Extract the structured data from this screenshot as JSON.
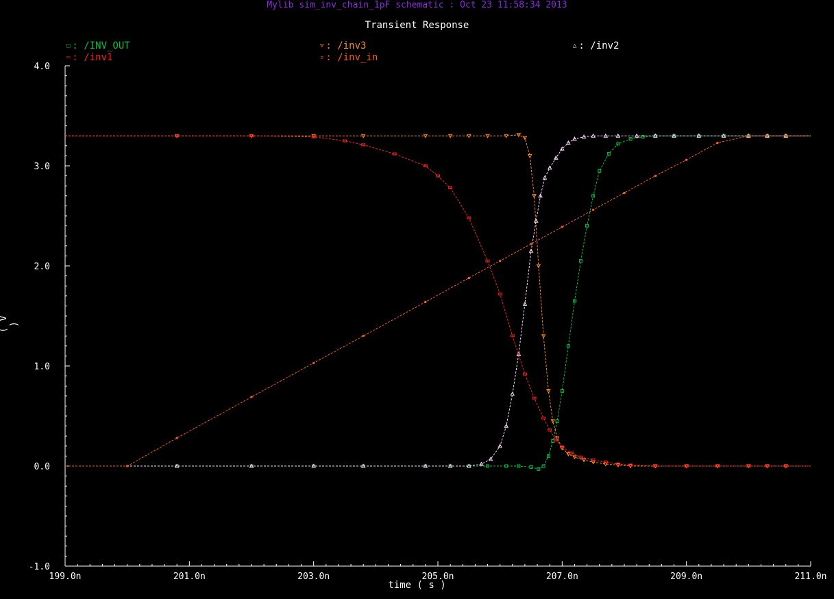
{
  "header": {
    "window_title": "Mylib sim_inv_chain_1pF schematic : Oct 23 11:58:34 2013"
  },
  "chart_data": {
    "type": "line",
    "title": "Transient Response",
    "xlabel": "time ( s )",
    "ylabel": "( V )",
    "xlim": [
      199.0,
      211.0
    ],
    "ylim": [
      -1.0,
      4.0
    ],
    "x_ticks": [
      "199.0n",
      "201.0n",
      "203.0n",
      "205.0n",
      "207.0n",
      "209.0n",
      "211.0n"
    ],
    "y_ticks": [
      "4.0",
      "3.0",
      "2.0",
      "1.0",
      "0.0",
      "-1.0"
    ],
    "colors": {
      "background": "#000000",
      "axis": "#ffffff",
      "header": "#8a2be2",
      "INV_OUT": "#00c040",
      "inv3": "#ff8c1a",
      "inv2": "#ffd6ff",
      "inv1": "#ff2020",
      "inv_in": "#ff5a1a"
    },
    "legend": [
      {
        "marker": "□",
        "label": ": /INV_OUT",
        "key": "INV_OUT",
        "pos": "top-left"
      },
      {
        "marker": "▽",
        "label": ": /inv3",
        "key": "inv3",
        "pos": "top-center"
      },
      {
        "marker": "△",
        "label": ": /inv2",
        "key": "inv2",
        "pos": "top-right"
      },
      {
        "marker": "▭",
        "label": ": /inv1",
        "key": "inv1",
        "pos": "second-left"
      },
      {
        "marker": "▫",
        "label": ": /inv_in",
        "key": "inv_in",
        "pos": "second-center"
      }
    ],
    "series": [
      {
        "name": "/INV_OUT",
        "key": "INV_OUT",
        "marker": "square",
        "x": [
          199.0,
          200.8,
          202.0,
          203.0,
          203.8,
          204.8,
          205.2,
          205.5,
          205.8,
          206.1,
          206.3,
          206.5,
          206.62,
          206.7,
          206.78,
          206.85,
          206.92,
          207.0,
          207.1,
          207.2,
          207.3,
          207.4,
          207.5,
          207.6,
          207.75,
          207.9,
          208.1,
          208.3,
          208.5,
          208.8,
          209.2,
          209.6,
          210.0,
          210.3,
          210.6,
          211.0
        ],
        "y": [
          0.0,
          0.0,
          0.0,
          0.0,
          0.0,
          0.0,
          0.0,
          0.0,
          0.0,
          0.0,
          0.0,
          -0.01,
          -0.03,
          0.0,
          0.1,
          0.25,
          0.45,
          0.75,
          1.2,
          1.65,
          2.05,
          2.4,
          2.7,
          2.95,
          3.12,
          3.22,
          3.27,
          3.29,
          3.3,
          3.3,
          3.3,
          3.3,
          3.3,
          3.3,
          3.3,
          3.3
        ]
      },
      {
        "name": "/inv3",
        "key": "inv3",
        "marker": "triangle-down",
        "x": [
          199.0,
          200.8,
          202.0,
          203.0,
          203.8,
          204.8,
          205.2,
          205.5,
          205.8,
          206.1,
          206.3,
          206.4,
          206.48,
          206.55,
          206.62,
          206.7,
          206.78,
          206.85,
          206.92,
          207.0,
          207.1,
          207.2,
          207.35,
          207.5,
          207.7,
          207.9,
          208.1,
          208.5,
          209.0,
          209.5,
          210.0,
          210.3,
          210.6,
          211.0
        ],
        "y": [
          3.3,
          3.3,
          3.3,
          3.3,
          3.3,
          3.3,
          3.3,
          3.3,
          3.3,
          3.3,
          3.31,
          3.28,
          3.1,
          2.7,
          2.0,
          1.3,
          0.75,
          0.45,
          0.28,
          0.18,
          0.12,
          0.09,
          0.06,
          0.04,
          0.02,
          0.01,
          0.0,
          0.0,
          0.0,
          0.0,
          0.0,
          0.0,
          0.0,
          0.0
        ]
      },
      {
        "name": "/inv2",
        "key": "inv2",
        "marker": "triangle-up",
        "x": [
          199.0,
          200.8,
          202.0,
          203.0,
          203.8,
          204.8,
          205.2,
          205.5,
          205.7,
          205.85,
          206.0,
          206.1,
          206.2,
          206.3,
          206.4,
          206.5,
          206.58,
          206.65,
          206.72,
          206.8,
          206.9,
          207.0,
          207.1,
          207.2,
          207.35,
          207.5,
          207.7,
          207.9,
          208.2,
          208.5,
          208.8,
          209.2,
          209.6,
          210.0,
          210.3,
          210.6,
          211.0
        ],
        "y": [
          0.0,
          0.0,
          0.0,
          0.0,
          0.0,
          0.0,
          0.0,
          0.0,
          0.02,
          0.07,
          0.2,
          0.4,
          0.72,
          1.12,
          1.62,
          2.15,
          2.45,
          2.7,
          2.88,
          2.98,
          3.08,
          3.17,
          3.23,
          3.27,
          3.29,
          3.3,
          3.3,
          3.3,
          3.3,
          3.3,
          3.3,
          3.3,
          3.3,
          3.3,
          3.3,
          3.3,
          3.3
        ]
      },
      {
        "name": "/inv1",
        "key": "inv1",
        "marker": "rect",
        "x": [
          199.0,
          200.8,
          202.0,
          203.0,
          203.5,
          203.8,
          204.3,
          204.8,
          205.0,
          205.2,
          205.5,
          205.8,
          206.0,
          206.2,
          206.4,
          206.55,
          206.7,
          206.8,
          206.9,
          207.0,
          207.15,
          207.3,
          207.5,
          207.7,
          207.9,
          208.1,
          208.5,
          209.0,
          209.5,
          210.0,
          210.3,
          210.6,
          211.0
        ],
        "y": [
          3.3,
          3.3,
          3.3,
          3.29,
          3.25,
          3.21,
          3.12,
          3.0,
          2.9,
          2.78,
          2.48,
          2.05,
          1.72,
          1.3,
          0.92,
          0.68,
          0.48,
          0.36,
          0.26,
          0.19,
          0.13,
          0.09,
          0.06,
          0.04,
          0.02,
          0.01,
          0.0,
          0.0,
          0.0,
          0.0,
          0.0,
          0.0,
          0.0
        ]
      },
      {
        "name": "/inv_in",
        "key": "inv_in",
        "marker": "dot",
        "x": [
          199.0,
          200.0,
          200.8,
          202.0,
          203.0,
          203.8,
          204.8,
          205.5,
          206.0,
          206.5,
          207.0,
          207.5,
          208.0,
          208.5,
          209.0,
          209.5,
          210.0,
          210.3,
          210.6,
          211.0
        ],
        "y": [
          0.0,
          0.0,
          0.28,
          0.69,
          1.03,
          1.3,
          1.64,
          1.88,
          2.05,
          2.22,
          2.39,
          2.56,
          2.73,
          2.9,
          3.06,
          3.23,
          3.3,
          3.3,
          3.3,
          3.3
        ]
      }
    ]
  }
}
